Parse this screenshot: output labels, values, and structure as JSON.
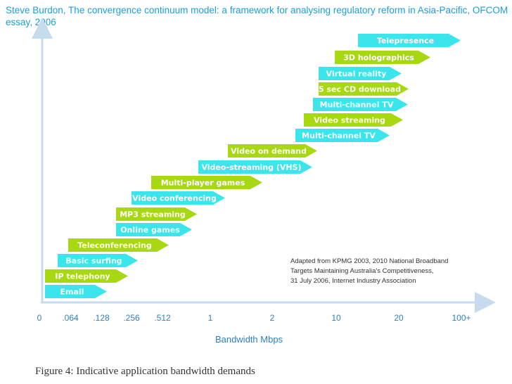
{
  "citation": "Steve Burdon, The convergence continuum model: a framework for analysing regulatory reform in Asia-Pacific, OFCOM essay, 2006",
  "caption": "Figure 4: Indicative application bandwidth demands",
  "colors": {
    "cyan": "#3ae6ec",
    "green": "#a8d812",
    "axis": "#c6dbee",
    "text_blue": "#2f7fc1"
  },
  "axis": {
    "title": "Bandwidth Mbps",
    "ticks": [
      "0",
      ".064",
      ".128",
      ".256",
      ".512",
      "1",
      "2",
      "10",
      "20",
      "100+"
    ]
  },
  "source_note": [
    "Adapted from KPMG 2003, 2010 National Broadband",
    "Targets Maintaining Australia's Competitiveness,",
    "31 July 2006, Internet Industry Association"
  ],
  "applications": [
    {
      "label": "Email",
      "color": "cyan"
    },
    {
      "label": "IP telephony",
      "color": "green"
    },
    {
      "label": "Basic surfing",
      "color": "cyan"
    },
    {
      "label": "Teleconferencing",
      "color": "green"
    },
    {
      "label": "Online games",
      "color": "cyan"
    },
    {
      "label": "MP3 streaming",
      "color": "green"
    },
    {
      "label": "Video conferencing",
      "color": "cyan"
    },
    {
      "label": "Multi-player games",
      "color": "green"
    },
    {
      "label": "Video-streaming (VHS)",
      "color": "cyan"
    },
    {
      "label": "Video on demand",
      "color": "green"
    },
    {
      "label": "Multi-channel TV",
      "color": "cyan"
    },
    {
      "label": "Video streaming",
      "color": "green"
    },
    {
      "label": "Multi-channel TV",
      "color": "cyan"
    },
    {
      "label": "5 sec CD download",
      "color": "green"
    },
    {
      "label": "Virtual reality",
      "color": "cyan"
    },
    {
      "label": "3D holographics",
      "color": "green"
    },
    {
      "label": "Telepresence",
      "color": "cyan"
    }
  ]
}
